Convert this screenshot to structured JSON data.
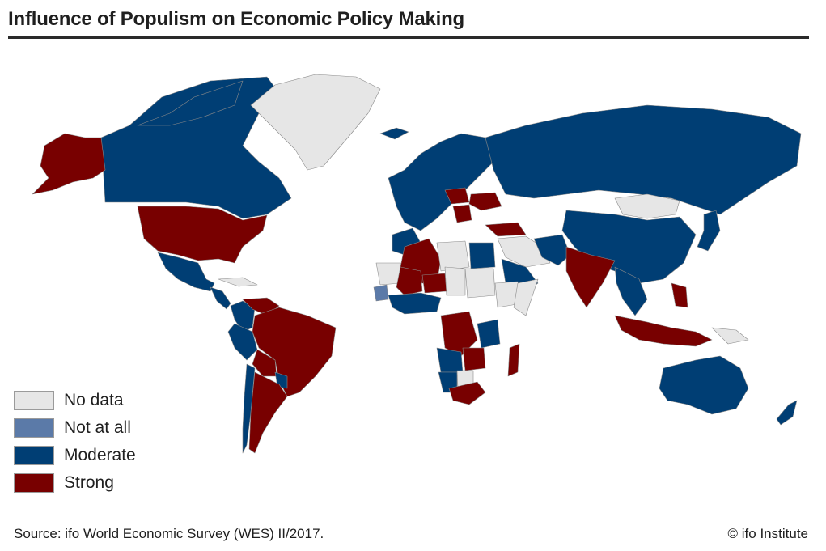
{
  "title": "Influence of Populism on Economic Policy Making",
  "legend": {
    "items": [
      {
        "label": "No data",
        "color": "#e6e6e6"
      },
      {
        "label": "Not at all",
        "color": "#5b7aa8"
      },
      {
        "label": "Moderate",
        "color": "#003e74"
      },
      {
        "label": "Strong",
        "color": "#780000"
      }
    ]
  },
  "footer": {
    "source": "Source: ifo World Economic Survey (WES) II/2017.",
    "credit": "© ifo Institute"
  },
  "regions": [
    {
      "name": "Alaska",
      "category": "Strong"
    },
    {
      "name": "Canada",
      "category": "Moderate"
    },
    {
      "name": "Greenland",
      "category": "No data"
    },
    {
      "name": "United States",
      "category": "Strong"
    },
    {
      "name": "Mexico",
      "category": "Moderate"
    },
    {
      "name": "Central America",
      "category": "Moderate"
    },
    {
      "name": "Cuba",
      "category": "No data"
    },
    {
      "name": "Venezuela",
      "category": "Strong"
    },
    {
      "name": "Colombia",
      "category": "Moderate"
    },
    {
      "name": "Brazil",
      "category": "Strong"
    },
    {
      "name": "Peru",
      "category": "Moderate"
    },
    {
      "name": "Bolivia",
      "category": "Strong"
    },
    {
      "name": "Paraguay",
      "category": "Moderate"
    },
    {
      "name": "Chile",
      "category": "Moderate"
    },
    {
      "name": "Argentina",
      "category": "Strong"
    },
    {
      "name": "Iceland",
      "category": "Moderate"
    },
    {
      "name": "Western Europe",
      "category": "Moderate"
    },
    {
      "name": "Poland",
      "category": "Strong"
    },
    {
      "name": "Ukraine",
      "category": "Strong"
    },
    {
      "name": "Hungary",
      "category": "Strong"
    },
    {
      "name": "Turkey",
      "category": "Strong"
    },
    {
      "name": "Russia",
      "category": "Moderate"
    },
    {
      "name": "Mongolia",
      "category": "No data"
    },
    {
      "name": "China",
      "category": "Moderate"
    },
    {
      "name": "Japan",
      "category": "Moderate"
    },
    {
      "name": "India",
      "category": "Strong"
    },
    {
      "name": "Middle East",
      "category": "No data"
    },
    {
      "name": "Saudi Arabia",
      "category": "Moderate"
    },
    {
      "name": "Iran",
      "category": "Moderate"
    },
    {
      "name": "Morocco",
      "category": "Moderate"
    },
    {
      "name": "Algeria",
      "category": "Strong"
    },
    {
      "name": "Libya",
      "category": "No data"
    },
    {
      "name": "Egypt",
      "category": "Moderate"
    },
    {
      "name": "Sudan",
      "category": "No data"
    },
    {
      "name": "Mali",
      "category": "Strong"
    },
    {
      "name": "Mauritania",
      "category": "No data"
    },
    {
      "name": "Niger",
      "category": "Strong"
    },
    {
      "name": "Chad",
      "category": "No data"
    },
    {
      "name": "Guinea",
      "category": "Not at all"
    },
    {
      "name": "Nigeria",
      "category": "Moderate"
    },
    {
      "name": "Ethiopia",
      "category": "No data"
    },
    {
      "name": "Somalia",
      "category": "No data"
    },
    {
      "name": "DR Congo",
      "category": "Strong"
    },
    {
      "name": "Angola",
      "category": "Moderate"
    },
    {
      "name": "Tanzania",
      "category": "Moderate"
    },
    {
      "name": "Zambia",
      "category": "Strong"
    },
    {
      "name": "Namibia",
      "category": "Moderate"
    },
    {
      "name": "Botswana",
      "category": "No data"
    },
    {
      "name": "South Africa",
      "category": "Strong"
    },
    {
      "name": "Madagascar",
      "category": "Strong"
    },
    {
      "name": "Southeast Asia",
      "category": "Moderate"
    },
    {
      "name": "Philippines",
      "category": "Strong"
    },
    {
      "name": "Indonesia",
      "category": "Strong"
    },
    {
      "name": "Papua New Guinea",
      "category": "No data"
    },
    {
      "name": "Australia",
      "category": "Moderate"
    },
    {
      "name": "New Zealand",
      "category": "Moderate"
    }
  ]
}
